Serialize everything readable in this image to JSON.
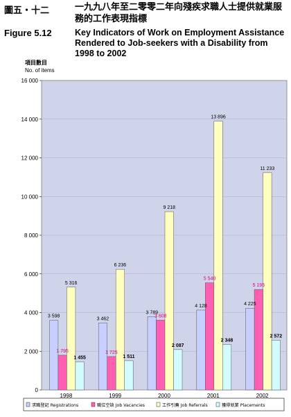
{
  "header": {
    "figure_label_zh": "圖五・十二",
    "title_zh": "一九九八年至二零零二年向殘疾求職人士提供就業服務的工作表現指標",
    "figure_label_en": "Figure 5.12",
    "title_en": "Key Indicators of Work on Employment Assistance Rendered to Job-seekers with a Disability from 1998 to 2002"
  },
  "chart_data": {
    "type": "bar",
    "title": "",
    "ylabel_zh": "項目數目",
    "ylabel": "No. of items",
    "xlabel": "",
    "ylim": [
      0,
      16000
    ],
    "yticks": [
      0,
      2000,
      4000,
      6000,
      8000,
      10000,
      12000,
      14000,
      16000
    ],
    "ytick_labels": [
      "0",
      "2 000",
      "4 000",
      "6 000",
      "8 000",
      "10 000",
      "12 000",
      "14 000",
      "16 000"
    ],
    "grid": true,
    "legend": "bottom",
    "categories": [
      "1998",
      "1999",
      "2000",
      "2001",
      "2002"
    ],
    "series": [
      {
        "name": "求職登記 Registrations",
        "color": "#c6cfff",
        "values": [
          3598,
          3462,
          3789,
          4128,
          4225
        ],
        "labels": [
          "3 598",
          "3 462",
          "3 789",
          "4 128",
          "4 225"
        ],
        "label_color": "#000000"
      },
      {
        "name": "職位空缺 Job Vacancies",
        "color": "#ff5eb2",
        "values": [
          1795,
          1725,
          3608,
          5540,
          5195
        ],
        "labels": [
          "1 795",
          "1 725",
          "3 608",
          "5 540",
          "5 195"
        ],
        "label_color": "#e6007e"
      },
      {
        "name": "工作引薦 Job Referrals",
        "color": "#ffffc0",
        "values": [
          5316,
          6236,
          9218,
          13896,
          11233
        ],
        "labels": [
          "5 316",
          "6 236",
          "9 218",
          "13 896",
          "11 233"
        ],
        "label_color": "#000000"
      },
      {
        "name": "獲得就業 Placements",
        "color": "#d2fbff",
        "values": [
          1455,
          1511,
          2087,
          2348,
          2572
        ],
        "labels": [
          "1 455",
          "1 511",
          "2 087",
          "2 348",
          "2 572"
        ],
        "label_color": "#000000"
      }
    ]
  }
}
